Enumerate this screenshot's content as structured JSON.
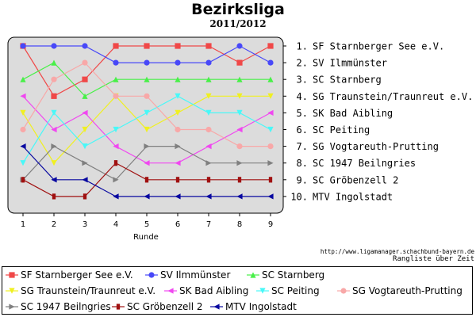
{
  "chart_data": {
    "type": "line",
    "title": "Bezirksliga",
    "subtitle": "2011/2012",
    "xlabel": "Runde",
    "ylabel": "",
    "x": [
      1,
      2,
      3,
      4,
      5,
      6,
      7,
      8,
      9
    ],
    "ylim": [
      10,
      1
    ],
    "y_inverted": true,
    "grid": false,
    "legend_position": "bottom",
    "ranking": [
      "1. SF Starnberger See e.V.",
      "2. SV Ilmmünster",
      "3. SC Starnberg",
      "4. SG Traunstein/Traunreut e.V.",
      "5. SK Bad Aibling",
      "6. SC Peiting",
      "7. SG Vogtareuth-Prutting",
      "8. SC 1947 Beilngries",
      "9. SC Gröbenzell 2",
      "10. MTV Ingolstadt"
    ],
    "series": [
      {
        "name": "SF Starnberger See e.V.",
        "color": "#f04848",
        "marker": "square",
        "values": [
          1,
          4,
          3,
          1,
          1,
          1,
          1,
          2,
          1
        ]
      },
      {
        "name": "SV Ilmmünster",
        "color": "#4848f8",
        "marker": "circle",
        "values": [
          1,
          1,
          1,
          2,
          2,
          2,
          2,
          1,
          2
        ]
      },
      {
        "name": "SC Starnberg",
        "color": "#48f048",
        "marker": "triangle-up",
        "values": [
          3,
          2,
          4,
          3,
          3,
          3,
          3,
          3,
          3
        ]
      },
      {
        "name": "SG Traunstein/Traunreut e.V.",
        "color": "#f0f020",
        "marker": "triangle-down",
        "values": [
          5,
          8,
          6,
          4,
          6,
          5,
          4,
          4,
          4
        ]
      },
      {
        "name": "SK Bad Aibling",
        "color": "#f048f0",
        "marker": "triangle-left",
        "values": [
          4,
          6,
          5,
          7,
          8,
          8,
          7,
          6,
          5
        ]
      },
      {
        "name": "SC Peiting",
        "color": "#48f8f8",
        "marker": "triangle-down",
        "values": [
          8,
          5,
          7,
          6,
          5,
          4,
          5,
          5,
          6
        ]
      },
      {
        "name": "SG Vogtareuth-Prutting",
        "color": "#f8a8a8",
        "marker": "circle",
        "values": [
          6,
          3,
          2,
          4,
          4,
          6,
          6,
          7,
          7
        ]
      },
      {
        "name": "SC 1947 Beilngries",
        "color": "#808080",
        "marker": "triangle-right",
        "values": [
          9,
          7,
          8,
          9,
          7,
          7,
          8,
          8,
          8
        ]
      },
      {
        "name": "SC Gröbenzell 2",
        "color": "#a01010",
        "marker": "bar",
        "values": [
          9,
          10,
          10,
          8,
          9,
          9,
          9,
          9,
          9
        ]
      },
      {
        "name": "MTV Ingolstadt",
        "color": "#0808a0",
        "marker": "triangle-left",
        "values": [
          7,
          9,
          9,
          10,
          10,
          10,
          10,
          10,
          10
        ]
      }
    ]
  },
  "footer": {
    "url": "http://www.ligamanager.schachbund-bayern.de",
    "caption": "Rangliste über Zeit"
  }
}
